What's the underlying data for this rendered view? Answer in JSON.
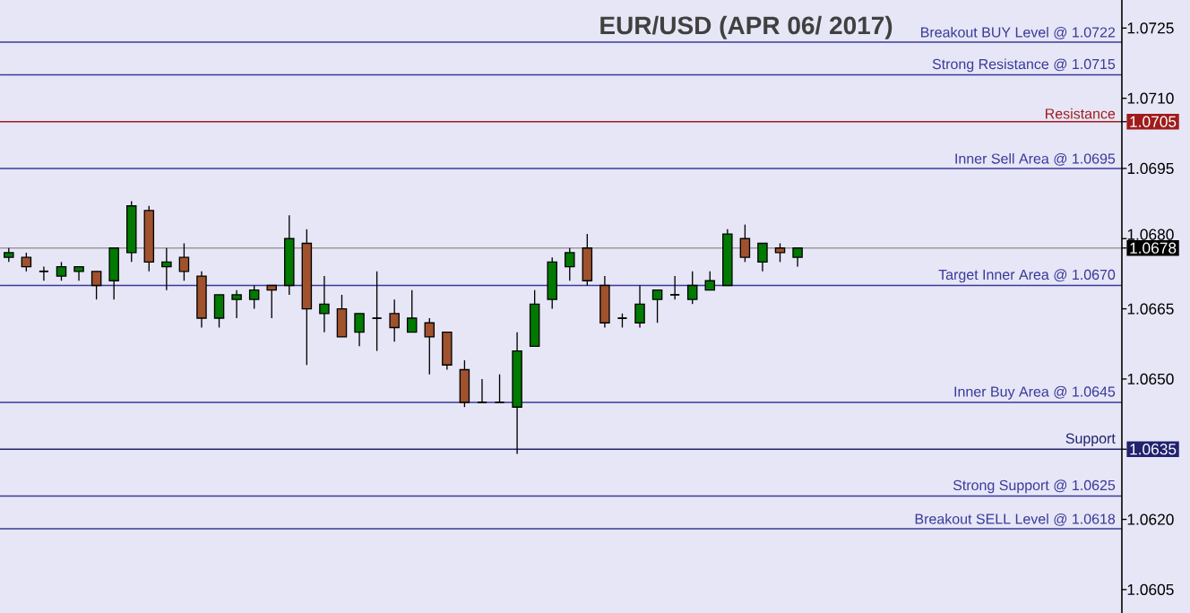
{
  "chart_data": {
    "type": "candlestick",
    "title": "EUR/USD (APR 06/ 2017)",
    "categories": [
      null,
      null,
      null,
      null,
      null,
      null,
      null,
      null,
      null,
      null,
      null,
      null,
      null,
      null,
      null,
      null,
      null,
      null,
      null,
      null,
      null,
      null,
      null,
      null,
      null,
      null,
      null,
      null,
      null,
      null,
      null,
      null,
      null,
      null,
      null,
      null,
      null,
      null,
      null,
      null,
      null,
      null,
      null,
      null,
      null,
      null,
      null,
      null,
      null,
      null,
      null,
      null,
      null,
      null,
      null,
      null,
      null,
      null,
      null,
      null,
      null,
      null,
      null,
      null
    ],
    "ohlc": [
      [
        1.0676,
        1.0678,
        1.0675,
        1.0677
      ],
      [
        1.0676,
        1.0677,
        1.0673,
        1.0674
      ],
      [
        1.0673,
        1.0674,
        1.0671,
        1.0673
      ],
      [
        1.0672,
        1.0675,
        1.0671,
        1.0674
      ],
      [
        1.0673,
        1.0674,
        1.0671,
        1.0674
      ],
      [
        1.0673,
        1.0673,
        1.0667,
        1.067
      ],
      [
        1.0671,
        1.0678,
        1.0667,
        1.0678
      ],
      [
        1.0677,
        1.0688,
        1.0675,
        1.0687
      ],
      [
        1.0686,
        1.0687,
        1.0673,
        1.0675
      ],
      [
        1.0674,
        1.0678,
        1.0669,
        1.0675
      ],
      [
        1.0676,
        1.0679,
        1.0671,
        1.0673
      ],
      [
        1.0672,
        1.0673,
        1.0661,
        1.0663
      ],
      [
        1.0663,
        1.0668,
        1.0661,
        1.0668
      ],
      [
        1.0667,
        1.0669,
        1.0663,
        1.0668
      ],
      [
        1.0667,
        1.067,
        1.0665,
        1.0669
      ],
      [
        1.067,
        1.067,
        1.0663,
        1.0669
      ],
      [
        1.067,
        1.0685,
        1.0668,
        1.068
      ],
      [
        1.0679,
        1.0682,
        1.0653,
        1.0665
      ],
      [
        1.0664,
        1.0672,
        1.066,
        1.0666
      ],
      [
        1.0665,
        1.0668,
        1.0659,
        1.0659
      ],
      [
        1.066,
        1.0664,
        1.0657,
        1.0664
      ],
      [
        1.0663,
        1.0673,
        1.0656,
        1.0663
      ],
      [
        1.0664,
        1.0667,
        1.0658,
        1.0661
      ],
      [
        1.066,
        1.0669,
        1.066,
        1.0663
      ],
      [
        1.0662,
        1.0663,
        1.0651,
        1.0659
      ],
      [
        1.066,
        1.066,
        1.0652,
        1.0653
      ],
      [
        1.0652,
        1.0654,
        1.0644,
        1.0645
      ],
      [
        1.0645,
        1.065,
        1.0645,
        1.0645
      ],
      [
        1.0645,
        1.0651,
        1.0645,
        1.0645
      ],
      [
        1.0644,
        1.066,
        1.0634,
        1.0656
      ],
      [
        1.0657,
        1.0669,
        1.0657,
        1.0666
      ],
      [
        1.0667,
        1.0676,
        1.0665,
        1.0675
      ],
      [
        1.0674,
        1.0678,
        1.0671,
        1.0677
      ],
      [
        1.0678,
        1.0681,
        1.067,
        1.0671
      ],
      [
        1.067,
        1.0672,
        1.0661,
        1.0662
      ],
      [
        1.0663,
        1.0664,
        1.0661,
        1.0663
      ],
      [
        1.0662,
        1.067,
        1.0661,
        1.0666
      ],
      [
        1.0667,
        1.0669,
        1.0662,
        1.0669
      ],
      [
        1.0668,
        1.0672,
        1.0667,
        1.0668
      ],
      [
        1.0667,
        1.0673,
        1.0666,
        1.067
      ],
      [
        1.0669,
        1.0673,
        1.0669,
        1.0671
      ],
      [
        1.067,
        1.0682,
        1.067,
        1.0681
      ],
      [
        1.068,
        1.0683,
        1.0675,
        1.0676
      ],
      [
        1.0675,
        1.0679,
        1.0673,
        1.0679
      ],
      [
        1.0678,
        1.0679,
        1.0675,
        1.0677
      ],
      [
        1.0676,
        1.0678,
        1.0674,
        1.0678
      ],
      null,
      null,
      null,
      null,
      null,
      null,
      null,
      null,
      null,
      null,
      null,
      null,
      null,
      null,
      null,
      null,
      null,
      null
    ],
    "colors": [
      "#007a00",
      "#a0522d",
      "#000000",
      "#007a00",
      "#007a00",
      "#a0522d",
      "#007a00",
      "#007a00",
      "#a0522d",
      "#007a00",
      "#a0522d",
      "#a0522d",
      "#007a00",
      "#007a00",
      "#007a00",
      "#a0522d",
      "#007a00",
      "#a0522d",
      "#007a00",
      "#a0522d",
      "#007a00",
      "#000000",
      "#a0522d",
      "#007a00",
      "#a0522d",
      "#a0522d",
      "#a0522d",
      "#000000",
      "#000000",
      "#007a00",
      "#007a00",
      "#007a00",
      "#007a00",
      "#a0522d",
      "#a0522d",
      "#000000",
      "#007a00",
      "#007a00",
      "#000000",
      "#007a00",
      "#007a00",
      "#007a00",
      "#a0522d",
      "#007a00",
      "#a0522d",
      "#007a00",
      null,
      null,
      null,
      null,
      null,
      null,
      null,
      null,
      null,
      null,
      null,
      null,
      null,
      null,
      null,
      null,
      null,
      null
    ],
    "ylim": [
      1.06,
      1.0731
    ],
    "yticks": [
      {
        "value": 1.0725,
        "label": "1.0725"
      },
      {
        "value": 1.071,
        "label": "1.0710"
      },
      {
        "value": 1.0705,
        "label": "1.0705"
      },
      {
        "value": 1.0695,
        "label": "1.0695"
      },
      {
        "value": 1.068,
        "label": "1.0680"
      },
      {
        "value": 1.0678,
        "label": "1.0678"
      },
      {
        "value": 1.0665,
        "label": "1.0665"
      },
      {
        "value": 1.065,
        "label": "1.0650"
      },
      {
        "value": 1.0635,
        "label": "1.0635"
      },
      {
        "value": 1.062,
        "label": "1.0620"
      },
      {
        "value": 1.0605,
        "label": "1.0605"
      }
    ],
    "ref_lines": [
      {
        "axis": "y",
        "value": 1.0722,
        "label": "Breakout BUY Level @ 1.0722",
        "color": "#3a3a9a"
      },
      {
        "axis": "y",
        "value": 1.0715,
        "label": "Strong Resistance @  1.0715",
        "color": "#3a3a9a"
      },
      {
        "axis": "y",
        "value": 1.0705,
        "label": "Resistance",
        "color": "#a01c1c"
      },
      {
        "axis": "y",
        "value": 1.0695,
        "label": "Inner Sell Area @ 1.0695",
        "color": "#3a3a9a"
      },
      {
        "axis": "y",
        "value": 1.0678,
        "color": "#9a9a9a"
      },
      {
        "axis": "y",
        "value": 1.067,
        "label": "Target Inner Area @ 1.0670",
        "color": "#3a3a9a"
      },
      {
        "axis": "y",
        "value": 1.0645,
        "label": "Inner Buy Area  @ 1.0645",
        "color": "#3a3a9a"
      },
      {
        "axis": "y",
        "value": 1.0635,
        "label": "Support",
        "color": "#22226e"
      },
      {
        "axis": "y",
        "value": 1.0625,
        "label": "Strong Support  @  1.0625",
        "color": "#3a3a9a"
      },
      {
        "axis": "y",
        "value": 1.0618,
        "label": "Breakout SELL Level  @ 1.0618",
        "color": "#3a3a9a"
      }
    ],
    "tick_labels": "y"
  }
}
